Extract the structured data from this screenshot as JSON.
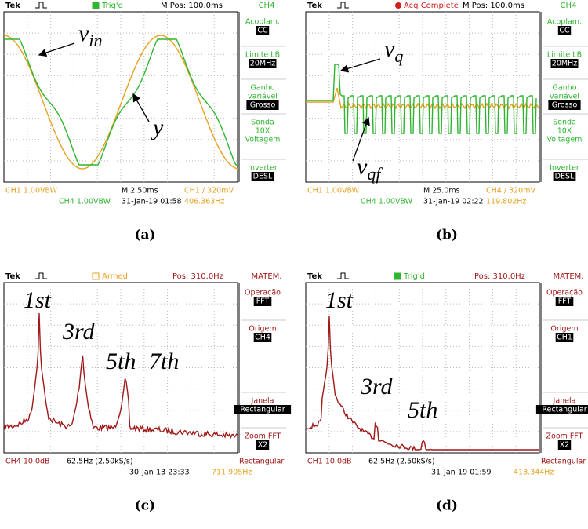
{
  "panels": [
    {
      "header": [
        "Tek",
        "Trig'd",
        "M Pos: 100.0ms",
        "CH4"
      ],
      "menu": [
        {
          "lines": [
            "Acoplam."
          ],
          "value": "CC"
        },
        {
          "lines": [
            "Limite LB"
          ],
          "value": "20MHz"
        },
        {
          "lines": [
            "Ganho",
            "variável"
          ],
          "value": "Grosso"
        },
        {
          "lines": [
            "Sonda",
            "10X",
            "Voltagem"
          ]
        },
        {
          "lines": [
            "Inverter"
          ],
          "value": "DESL"
        }
      ],
      "footer": [
        "CH1  1.00VBW",
        "M 2.50ms",
        "CH1 / 320mV",
        "CH4  1.00VBW",
        "31-Jan-19 01:58",
        "406.363Hz"
      ],
      "annotations": [
        {
          "base": "v",
          "sub": "in"
        },
        {
          "base": "y"
        }
      ],
      "caption": "(a)"
    },
    {
      "header": [
        "Tek",
        "Acq Complete",
        "M Pos: 100.0ms",
        "CH4"
      ],
      "menu": [
        {
          "lines": [
            "Acoplam."
          ],
          "value": "CC"
        },
        {
          "lines": [
            "Limite LB"
          ],
          "value": "20MHz"
        },
        {
          "lines": [
            "Ganho",
            "variável"
          ],
          "value": "Grosso"
        },
        {
          "lines": [
            "Sonda",
            "10X",
            "Voltagem"
          ]
        },
        {
          "lines": [
            "Inverter"
          ],
          "value": "DESL"
        }
      ],
      "footer": [
        "CH1  1.00VBW",
        "M 25.0ms",
        "CH4 / 320mV",
        "CH4  1.00VBW",
        "31-Jan-19 02:22",
        "119.802Hz"
      ],
      "annotations": [
        {
          "base": "v",
          "sub": "q"
        },
        {
          "base": "v",
          "sub": "qf"
        }
      ],
      "caption": "(b)"
    },
    {
      "header": [
        "Tek",
        "Armed",
        "Pos: 310.0Hz",
        "MATEM."
      ],
      "menu": [
        {
          "lines": [
            "Operação"
          ],
          "value": "FFT"
        },
        {
          "lines": [
            "Origem"
          ],
          "value": "CH4"
        },
        {
          "lines": [
            "Janela"
          ],
          "value": "Rectangular"
        },
        {
          "lines": [
            "Zoom FFT"
          ],
          "value": "X2"
        }
      ],
      "footer": [
        "CH4 10.0dB",
        "62.5Hz (2.50kS/s)",
        "Rectangular",
        "30-Jan-13 23:33",
        "711.905Hz"
      ],
      "annotations": [
        {
          "base": "1st"
        },
        {
          "base": "3rd"
        },
        {
          "base": "5th"
        },
        {
          "base": "7th"
        }
      ],
      "caption": "(c)"
    },
    {
      "header": [
        "Tek",
        "Trig'd",
        "Pos: 310.0Hz",
        "MATEM."
      ],
      "menu": [
        {
          "lines": [
            "Operação"
          ],
          "value": "FFT"
        },
        {
          "lines": [
            "Origem"
          ],
          "value": "CH1"
        },
        {
          "lines": [
            "Janela"
          ],
          "value": "Rectangular"
        },
        {
          "lines": [
            "Zoom FFT"
          ],
          "value": "X2"
        }
      ],
      "footer": [
        "CH1 10.0dB",
        "62.5Hz (2.50kS/s)",
        "Rectangular",
        "31-Jan-19 01:59",
        "413.344Hz"
      ],
      "annotations": [
        {
          "base": "1st"
        },
        {
          "base": "3rd"
        },
        {
          "base": "5th"
        }
      ],
      "caption": "(d)"
    }
  ]
}
